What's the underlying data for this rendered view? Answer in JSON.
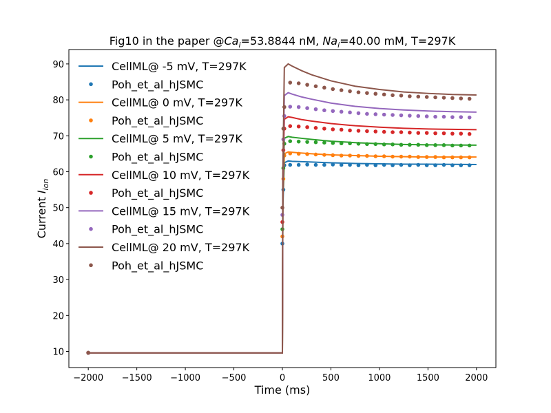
{
  "chart_data": {
    "type": "line",
    "title": {
      "prefix": "Fig10 in the paper @",
      "ca_sym": "Ca",
      "ca_sub": "i",
      "ca_val": "=53.8844 nM, ",
      "na_sym": "Na",
      "na_sub": "i",
      "na_val": "=40.00 mM, T=297K"
    },
    "xlabel": "Time (ms)",
    "ylabel": {
      "text": "Current ",
      "sym": "I",
      "sub": "ion"
    },
    "xlim": [
      -2200,
      2200
    ],
    "ylim": [
      5.5,
      94
    ],
    "xticks": [
      -2000,
      -1500,
      -1000,
      -500,
      0,
      500,
      1000,
      1500,
      2000
    ],
    "yticks": [
      10,
      20,
      30,
      40,
      50,
      60,
      70,
      80,
      90
    ],
    "legend_position": "top-left",
    "line_t": [
      -2000,
      0,
      5,
      20,
      60,
      100,
      200,
      300,
      500,
      750,
      1000,
      1250,
      1500,
      1750,
      2000
    ],
    "dot_t": [
      -2000,
      0,
      10,
      20,
      80,
      168,
      256,
      344,
      432,
      520,
      608,
      696,
      784,
      872,
      960,
      1048,
      1136,
      1224,
      1312,
      1400,
      1488,
      1576,
      1664,
      1752,
      1840,
      1928
    ],
    "series": [
      {
        "name": "CellML@ -5 mV, T=297K",
        "kind": "line",
        "color": "#1f77b4",
        "values": [
          9.6,
          9.6,
          50,
          62.5,
          63.0,
          62.9,
          62.8,
          62.7,
          62.5,
          62.3,
          62.2,
          62.1,
          62.1,
          62.05,
          62.0
        ]
      },
      {
        "name": "Poh_et_al_hJSMC",
        "kind": "dots",
        "color": "#1f77b4",
        "values": [
          9.6,
          40,
          55,
          61.8,
          61.9,
          61.9,
          62.0,
          61.9,
          61.9,
          62.0,
          61.9,
          61.9,
          61.8,
          61.9,
          61.8,
          61.9,
          61.8,
          61.9,
          61.8,
          61.9,
          61.8,
          61.8,
          61.9,
          61.8,
          61.8,
          61.8
        ]
      },
      {
        "name": "CellML@ 0 mV, T=297K",
        "kind": "line",
        "color": "#ff7f0e",
        "values": [
          9.6,
          9.6,
          52,
          65.0,
          65.5,
          65.4,
          65.2,
          65.0,
          64.7,
          64.5,
          64.3,
          64.2,
          64.1,
          64.1,
          64.1
        ]
      },
      {
        "name": "Poh_et_al_hJSMC",
        "kind": "dots",
        "color": "#ff7f0e",
        "values": [
          9.6,
          42,
          58,
          64.5,
          65.1,
          65.0,
          64.9,
          64.8,
          64.7,
          64.6,
          64.5,
          64.5,
          64.4,
          64.4,
          64.3,
          64.3,
          64.2,
          64.2,
          64.2,
          64.1,
          64.1,
          64.1,
          64.0,
          64.0,
          64.0,
          64.0
        ]
      },
      {
        "name": "CellML@ 5 mV, T=297K",
        "kind": "line",
        "color": "#2ca02c",
        "values": [
          9.6,
          9.6,
          54,
          69.3,
          69.8,
          69.6,
          69.3,
          69.0,
          68.5,
          68.1,
          67.8,
          67.6,
          67.5,
          67.45,
          67.4
        ]
      },
      {
        "name": "Poh_et_al_hJSMC",
        "kind": "dots",
        "color": "#2ca02c",
        "values": [
          9.6,
          44,
          61,
          67.8,
          68.5,
          68.4,
          68.3,
          68.2,
          68.1,
          68.0,
          67.9,
          67.9,
          67.8,
          67.7,
          67.7,
          67.6,
          67.6,
          67.5,
          67.5,
          67.5,
          67.4,
          67.4,
          67.4,
          67.3,
          67.3,
          67.3
        ]
      },
      {
        "name": "CellML@ 10 mV, T=297K",
        "kind": "line",
        "color": "#d62728",
        "values": [
          9.6,
          9.6,
          56,
          74.6,
          75.3,
          75.1,
          74.5,
          74.1,
          73.4,
          72.8,
          72.4,
          72.1,
          71.9,
          71.8,
          71.7
        ]
      },
      {
        "name": "Poh_et_al_hJSMC",
        "kind": "dots",
        "color": "#d62728",
        "values": [
          9.6,
          46,
          66,
          72.0,
          72.7,
          72.6,
          72.4,
          72.2,
          72.0,
          71.8,
          71.7,
          71.5,
          71.4,
          71.3,
          71.2,
          71.1,
          71.0,
          71.0,
          70.9,
          70.8,
          70.8,
          70.7,
          70.7,
          70.6,
          70.6,
          70.5
        ]
      },
      {
        "name": "CellML@ 15 mV, T=297K",
        "kind": "line",
        "color": "#9467bd",
        "values": [
          9.6,
          9.6,
          58,
          81.2,
          82.0,
          81.6,
          80.8,
          80.2,
          79.1,
          78.2,
          77.6,
          77.2,
          76.9,
          76.7,
          76.6
        ]
      },
      {
        "name": "Poh_et_al_hJSMC",
        "kind": "dots",
        "color": "#9467bd",
        "values": [
          9.6,
          48,
          69,
          75.5,
          78.1,
          78.0,
          77.7,
          77.4,
          77.1,
          76.9,
          76.7,
          76.5,
          76.3,
          76.1,
          76.0,
          75.9,
          75.8,
          75.7,
          75.6,
          75.5,
          75.4,
          75.3,
          75.3,
          75.2,
          75.2,
          75.1
        ]
      },
      {
        "name": "CellML@ 20 mV, T=297K",
        "kind": "line",
        "color": "#8c564b",
        "values": [
          9.6,
          9.6,
          60,
          89.0,
          90.0,
          89.4,
          88.1,
          87.0,
          85.3,
          83.8,
          82.9,
          82.2,
          81.8,
          81.5,
          81.35
        ]
      },
      {
        "name": "Poh_et_al_hJSMC",
        "kind": "dots",
        "color": "#8c564b",
        "values": [
          9.6,
          50,
          72,
          78.0,
          84.8,
          84.6,
          84.2,
          83.8,
          83.4,
          83.0,
          82.7,
          82.4,
          82.1,
          81.9,
          81.7,
          81.5,
          81.3,
          81.2,
          81.0,
          80.9,
          80.8,
          80.7,
          80.6,
          80.5,
          80.4,
          80.3
        ]
      }
    ]
  }
}
